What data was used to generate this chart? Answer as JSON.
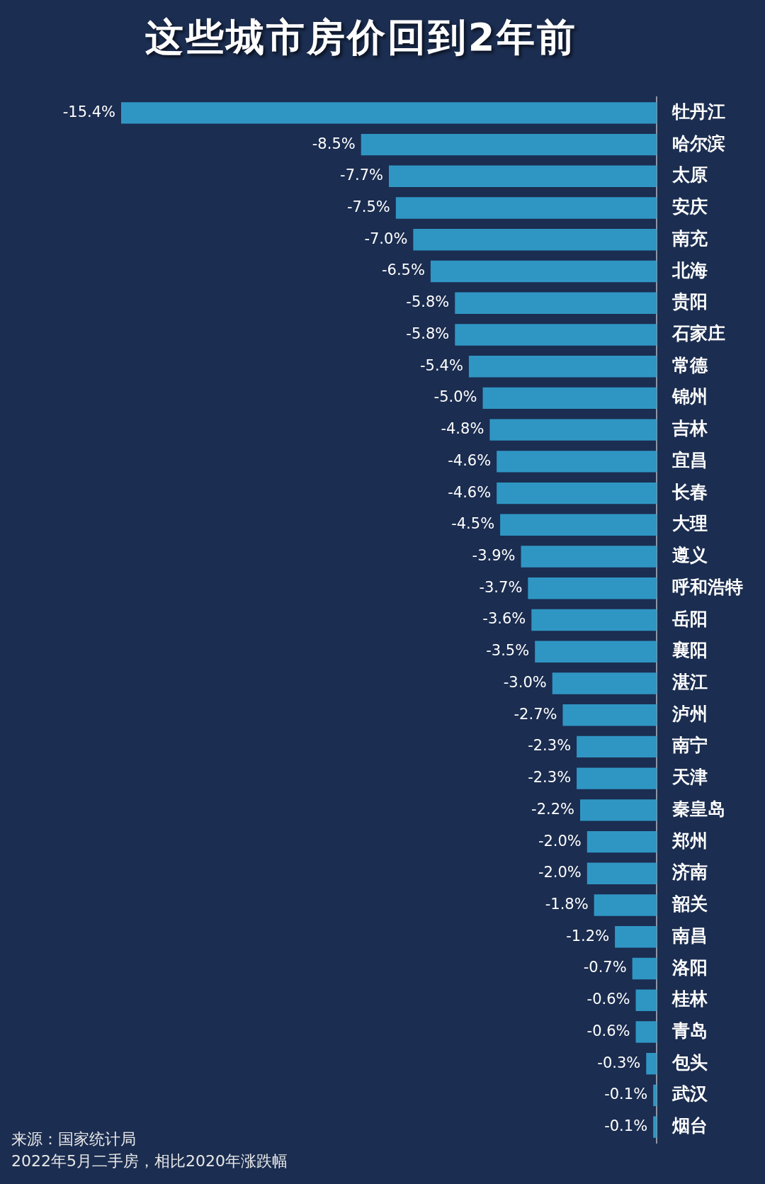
{
  "chart_data": {
    "type": "bar",
    "orientation": "horizontal",
    "title": "这些城市房价回到2年前",
    "categories": [
      "牡丹江",
      "哈尔滨",
      "太原",
      "安庆",
      "南充",
      "北海",
      "贵阳",
      "石家庄",
      "常德",
      "锦州",
      "吉林",
      "宜昌",
      "长春",
      "大理",
      "遵义",
      "呼和浩特",
      "岳阳",
      "襄阳",
      "湛江",
      "泸州",
      "南宁",
      "天津",
      "秦皇岛",
      "郑州",
      "济南",
      "韶关",
      "南昌",
      "洛阳",
      "桂林",
      "青岛",
      "包头",
      "武汉",
      "烟台"
    ],
    "values": [
      -15.4,
      -8.5,
      -7.7,
      -7.5,
      -7.0,
      -6.5,
      -5.8,
      -5.8,
      -5.4,
      -5.0,
      -4.8,
      -4.6,
      -4.6,
      -4.5,
      -3.9,
      -3.7,
      -3.6,
      -3.5,
      -3.0,
      -2.7,
      -2.3,
      -2.3,
      -2.2,
      -2.0,
      -2.0,
      -1.8,
      -1.2,
      -0.7,
      -0.6,
      -0.6,
      -0.3,
      -0.1,
      -0.1
    ],
    "value_labels": [
      "-15.4%",
      "-8.5%",
      "-7.7%",
      "-7.5%",
      "-7.0%",
      "-6.5%",
      "-5.8%",
      "-5.8%",
      "-5.4%",
      "-5.0%",
      "-4.8%",
      "-4.6%",
      "-4.6%",
      "-4.5%",
      "-3.9%",
      "-3.7%",
      "-3.6%",
      "-3.5%",
      "-3.0%",
      "-2.7%",
      "-2.3%",
      "-2.3%",
      "-2.2%",
      "-2.0%",
      "-2.0%",
      "-1.8%",
      "-1.2%",
      "-0.7%",
      "-0.6%",
      "-0.6%",
      "-0.3%",
      "-0.1%",
      "-0.1%"
    ],
    "color": "#2f96c4",
    "tick_labels": "y",
    "annotations": [
      "来源：国家统计局",
      "2022年5月二手房，相比2020年涨跌幅"
    ]
  }
}
